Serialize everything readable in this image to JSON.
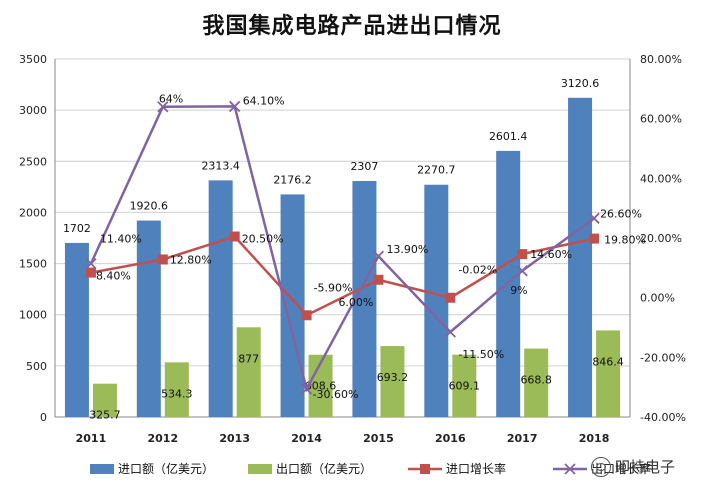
{
  "title": "我国集成电路产品进出口情况",
  "watermark": "叩持电子",
  "chart_data": {
    "type": "bar",
    "categories": [
      "2011",
      "2012",
      "2013",
      "2014",
      "2015",
      "2016",
      "2017",
      "2018"
    ],
    "series": [
      {
        "name": "进口额（亿美元）",
        "kind": "bar",
        "axis": "left",
        "color": "#4F81BD",
        "values": [
          1702,
          1920.6,
          2313.4,
          2176.2,
          2307,
          2270.7,
          2601.4,
          3120.6
        ],
        "labels": [
          "1702",
          "1920.6",
          "2313.4",
          "2176.2",
          "2307",
          "2270.7",
          "2601.4",
          "3120.6"
        ]
      },
      {
        "name": "出口额（亿美元）",
        "kind": "bar",
        "axis": "left",
        "color": "#9BBB59",
        "values": [
          325.7,
          534.3,
          877,
          608.6,
          693.2,
          609.1,
          668.8,
          846.4
        ],
        "labels": [
          "325.7",
          "534.3",
          "877",
          "608.6",
          "693.2",
          "609.1",
          "668.8",
          "846.4"
        ]
      },
      {
        "name": "进口增长率",
        "kind": "line",
        "axis": "right",
        "color": "#C0504D",
        "marker": "square",
        "values": [
          8.4,
          12.8,
          20.5,
          -5.9,
          6.0,
          -0.02,
          14.6,
          19.8
        ],
        "labels": [
          "8.40%",
          "12.80%",
          "20.50%",
          "-5.90%",
          "6.00%",
          "-0.02%",
          "14.60%",
          "19.80%"
        ]
      },
      {
        "name": "出口增长率",
        "kind": "line",
        "axis": "right",
        "color": "#8064A2",
        "marker": "x",
        "values": [
          11.4,
          64,
          64.1,
          -30.6,
          13.9,
          -11.5,
          9,
          26.6
        ],
        "labels": [
          "11.40%",
          "64%",
          "64.10%",
          "-30.60%",
          "13.90%",
          "-11.50%",
          "9%",
          "26.60%"
        ]
      }
    ],
    "left_axis": {
      "min": 0,
      "max": 3500,
      "step": 500,
      "ticks": [
        "0",
        "500",
        "1000",
        "1500",
        "2000",
        "2500",
        "3000",
        "3500"
      ]
    },
    "right_axis": {
      "min": -40,
      "max": 80,
      "step": 20,
      "ticks": [
        "-40.00%",
        "-20.00%",
        "0.00%",
        "20.00%",
        "40.00%",
        "60.00%",
        "80.00%"
      ]
    },
    "grid": true,
    "legend": "bottom"
  }
}
